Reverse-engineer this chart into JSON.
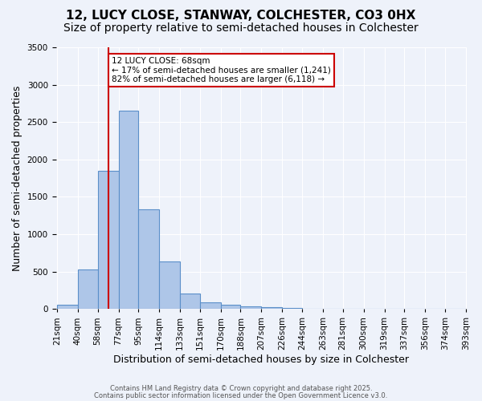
{
  "title1": "12, LUCY CLOSE, STANWAY, COLCHESTER, CO3 0HX",
  "title2": "Size of property relative to semi-detached houses in Colchester",
  "xlabel": "Distribution of semi-detached houses by size in Colchester",
  "ylabel": "Number of semi-detached properties",
  "categories": [
    "21sqm",
    "40sqm",
    "58sqm",
    "77sqm",
    "95sqm",
    "114sqm",
    "133sqm",
    "151sqm",
    "170sqm",
    "188sqm",
    "207sqm",
    "226sqm",
    "244sqm",
    "263sqm",
    "281sqm",
    "300sqm",
    "319sqm",
    "337sqm",
    "356sqm",
    "374sqm",
    "393sqm"
  ],
  "bin_edges": [
    21,
    40,
    58,
    77,
    95,
    114,
    133,
    151,
    170,
    188,
    207,
    226,
    244,
    263,
    281,
    300,
    319,
    337,
    356,
    374,
    393
  ],
  "values": [
    60,
    530,
    1850,
    2650,
    1330,
    640,
    210,
    90,
    55,
    35,
    20,
    10,
    5,
    2,
    1,
    1,
    0,
    0,
    0,
    0
  ],
  "bar_color": "#aec6e8",
  "bar_edge_color": "#5b8fc9",
  "property_line_x": 68,
  "property_line_color": "#cc0000",
  "annotation_text": "12 LUCY CLOSE: 68sqm\n← 17% of semi-detached houses are smaller (1,241)\n82% of semi-detached houses are larger (6,118) →",
  "annotation_box_color": "#cc0000",
  "ylim": [
    0,
    3500
  ],
  "yticks": [
    0,
    500,
    1000,
    1500,
    2000,
    2500,
    3000,
    3500
  ],
  "footer1": "Contains HM Land Registry data © Crown copyright and database right 2025.",
  "footer2": "Contains public sector information licensed under the Open Government Licence v3.0.",
  "background_color": "#eef2fa",
  "plot_bg_color": "#eef2fa",
  "title1_fontsize": 11,
  "title2_fontsize": 10,
  "tick_fontsize": 7.5,
  "xlabel_fontsize": 9,
  "ylabel_fontsize": 9
}
